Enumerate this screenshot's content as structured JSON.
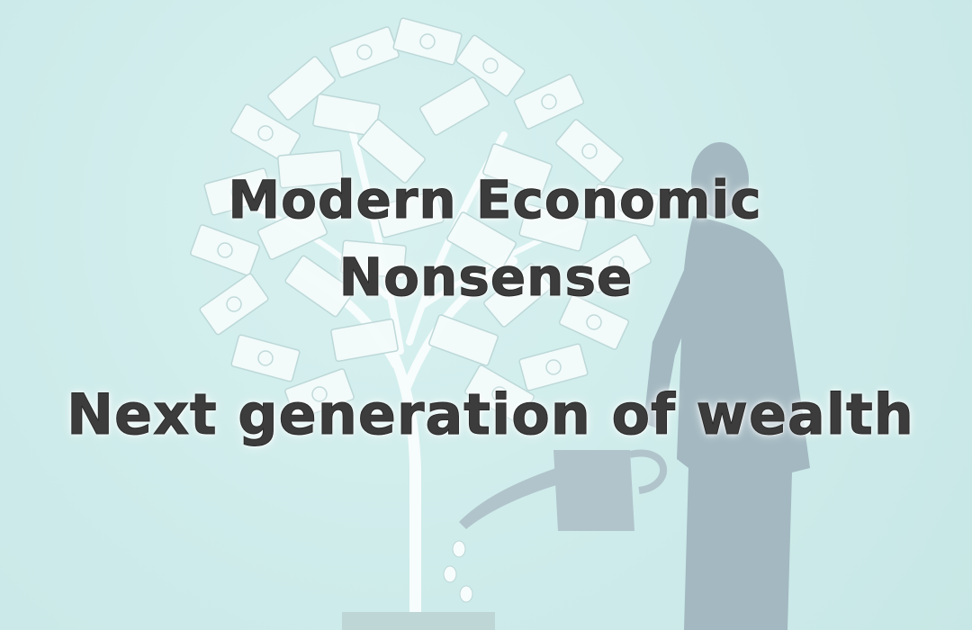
{
  "title": {
    "line1": "Modern Economic",
    "line2": "Nonsense",
    "line3": "Next generation of wealth"
  },
  "colors": {
    "background": "#cfecec",
    "text": "#3c3c3c",
    "banknote": "#f4fbfb",
    "figure": "#9fb3bd",
    "tree": "#f7fcfc"
  },
  "illustration": {
    "icons": [
      "money-tree-icon",
      "businessman-icon",
      "watering-can-icon",
      "coin-icon"
    ]
  }
}
